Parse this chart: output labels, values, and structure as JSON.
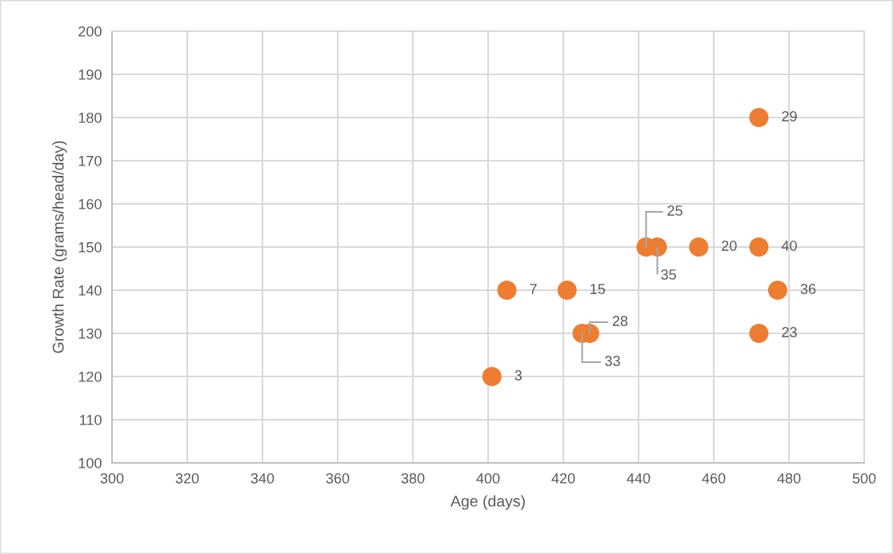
{
  "chart_data": {
    "type": "scatter",
    "xlabel": "Age (days)",
    "ylabel": "Growth Rate (grams/head/day)",
    "x": [
      401,
      405,
      421,
      425,
      427,
      442,
      445,
      456,
      472,
      472,
      477,
      472
    ],
    "series": [
      {
        "color": "#ed7d31",
        "values": [
          120,
          140,
          140,
          130,
          130,
          150,
          150,
          150,
          150,
          180,
          140,
          130
        ]
      }
    ],
    "xlim": [
      300,
      500
    ],
    "ylim": [
      100,
      200
    ],
    "xticks": [
      300,
      320,
      340,
      360,
      380,
      400,
      420,
      440,
      460,
      480,
      500
    ],
    "yticks": [
      100,
      110,
      120,
      130,
      140,
      150,
      160,
      170,
      180,
      190,
      200
    ],
    "grid": true,
    "marker": "circle",
    "annotations": [
      {
        "text": "3",
        "x": 401,
        "y": 120
      },
      {
        "text": "7",
        "x": 405,
        "y": 140
      },
      {
        "text": "15",
        "x": 421,
        "y": 140
      },
      {
        "text": "33",
        "x": 425,
        "y": 130
      },
      {
        "text": "28",
        "x": 427,
        "y": 130
      },
      {
        "text": "25",
        "x": 442,
        "y": 150
      },
      {
        "text": "35",
        "x": 445,
        "y": 150
      },
      {
        "text": "20",
        "x": 456,
        "y": 150
      },
      {
        "text": "40",
        "x": 472,
        "y": 150
      },
      {
        "text": "29",
        "x": 472,
        "y": 180
      },
      {
        "text": "36",
        "x": 477,
        "y": 140
      },
      {
        "text": "23",
        "x": 472,
        "y": 130
      }
    ]
  }
}
